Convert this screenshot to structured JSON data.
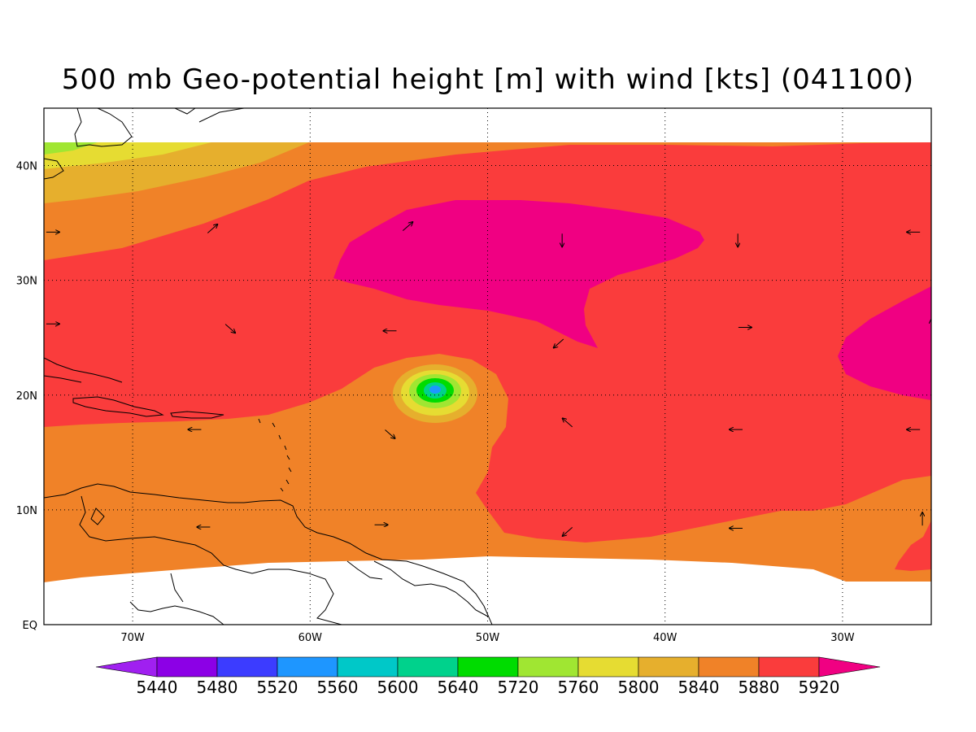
{
  "title": "500 mb Geo-potential height [m] with wind [kts] (041100)",
  "map": {
    "lon_range": [
      -75,
      -25
    ],
    "lat_range": [
      0,
      45
    ],
    "x_ticks": [
      {
        "lon": -70,
        "label": "70W"
      },
      {
        "lon": -60,
        "label": "60W"
      },
      {
        "lon": -50,
        "label": "50W"
      },
      {
        "lon": -40,
        "label": "40W"
      },
      {
        "lon": -30,
        "label": "30W"
      }
    ],
    "y_ticks": [
      {
        "lat": 0,
        "label": "EQ"
      },
      {
        "lat": 10,
        "label": "10N"
      },
      {
        "lat": 20,
        "label": "20N"
      },
      {
        "lat": 30,
        "label": "30N"
      },
      {
        "lat": 40,
        "label": "40N"
      }
    ],
    "grid": "dotted"
  },
  "colorbar": {
    "levels": [
      "5440",
      "5480",
      "5520",
      "5560",
      "5600",
      "5640",
      "5720",
      "5760",
      "5800",
      "5840",
      "5880",
      "5920"
    ],
    "colors": [
      "#a020f0",
      "#8c00e6",
      "#3c3cff",
      "#1e96ff",
      "#00c8c8",
      "#00d28c",
      "#00dc00",
      "#a0e632",
      "#e6dc32",
      "#e6af2d",
      "#f08228",
      "#fa3c3c",
      "#f00082"
    ]
  },
  "contour_colors": {
    "h5920": "#f00082",
    "h5880": "#fa3c3c",
    "h5840": "#f08228",
    "h5800": "#e6af2d",
    "h5760": "#e6dc32",
    "h5720": "#a0e632",
    "h5640": "#00dc00",
    "h5600": "#00d28c",
    "h5520": "#1e96ff"
  },
  "wind_vectors": [
    {
      "lon": -74.5,
      "lat": 34.2,
      "dir": "east"
    },
    {
      "lon": -74.5,
      "lat": 26.2,
      "dir": "east"
    },
    {
      "lon": -65.5,
      "lat": 34.5,
      "dir": "northeast"
    },
    {
      "lon": -64.5,
      "lat": 25.8,
      "dir": "southeast"
    },
    {
      "lon": -55.5,
      "lat": 25.6,
      "dir": "west"
    },
    {
      "lon": -54.5,
      "lat": 34.7,
      "dir": "northeast"
    },
    {
      "lon": -45.8,
      "lat": 33.5,
      "dir": "south"
    },
    {
      "lon": -46.0,
      "lat": 24.5,
      "dir": "southwest"
    },
    {
      "lon": -35.9,
      "lat": 33.5,
      "dir": "south"
    },
    {
      "lon": -35.5,
      "lat": 25.9,
      "dir": "east"
    },
    {
      "lon": -26.0,
      "lat": 34.2,
      "dir": "west"
    },
    {
      "lon": -25.0,
      "lat": 26.0,
      "dir": "north"
    },
    {
      "lon": -66.5,
      "lat": 17.0,
      "dir": "west"
    },
    {
      "lon": -55.5,
      "lat": 16.6,
      "dir": "southeast"
    },
    {
      "lon": -45.5,
      "lat": 17.6,
      "dir": "northwest"
    },
    {
      "lon": -36.0,
      "lat": 17.0,
      "dir": "west"
    },
    {
      "lon": -26.0,
      "lat": 17.0,
      "dir": "west"
    },
    {
      "lon": -66.0,
      "lat": 8.5,
      "dir": "west"
    },
    {
      "lon": -56.0,
      "lat": 8.7,
      "dir": "east"
    },
    {
      "lon": -45.5,
      "lat": 8.1,
      "dir": "southwest"
    },
    {
      "lon": -36.0,
      "lat": 8.4,
      "dir": "west"
    },
    {
      "lon": -25.5,
      "lat": 9.2,
      "dir": "north"
    }
  ]
}
